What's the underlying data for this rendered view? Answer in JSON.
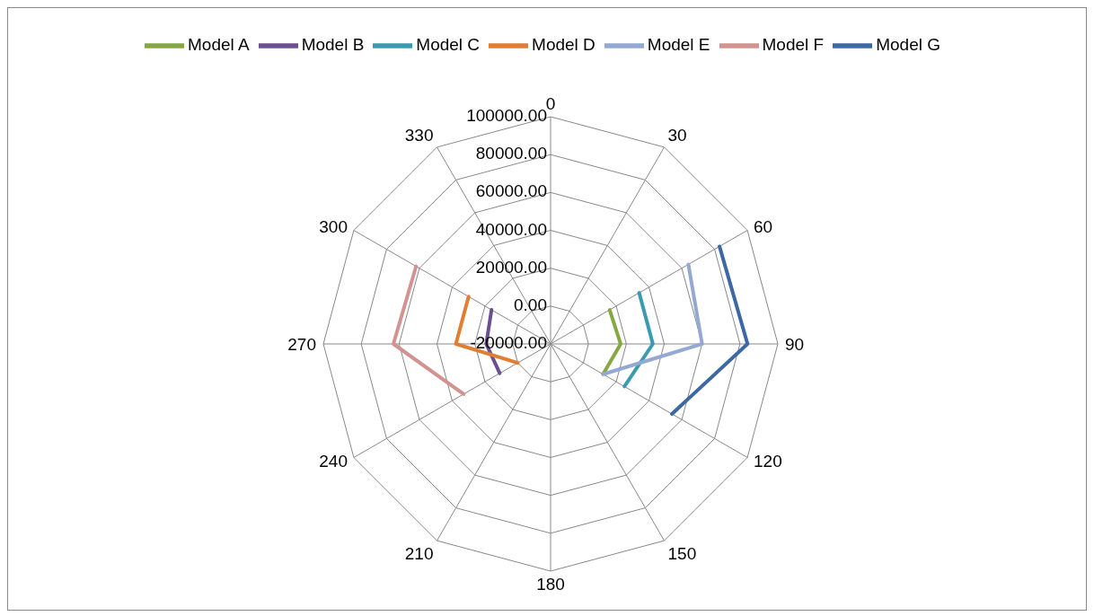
{
  "chart_data": {
    "type": "radar",
    "categories": [
      "0",
      "30",
      "60",
      "90",
      "120",
      "150",
      "180",
      "210",
      "240",
      "270",
      "300",
      "330"
    ],
    "series": [
      {
        "name": "Model A",
        "color": "#86a844",
        "values": [
          null,
          null,
          16000,
          17000,
          12000,
          null,
          null,
          null,
          null,
          null,
          null,
          null
        ]
      },
      {
        "name": "Model B",
        "color": "#6b4f8f",
        "values": [
          null,
          null,
          null,
          null,
          null,
          null,
          null,
          null,
          11000,
          14000,
          16000,
          null
        ]
      },
      {
        "name": "Model C",
        "color": "#3a9bb0",
        "values": [
          null,
          null,
          34000,
          34000,
          25000,
          null,
          null,
          null,
          null,
          null,
          null,
          null
        ]
      },
      {
        "name": "Model D",
        "color": "#e07f34",
        "values": [
          null,
          null,
          null,
          null,
          null,
          null,
          null,
          null,
          0,
          30000,
          30000,
          null
        ]
      },
      {
        "name": "Model E",
        "color": "#93a9d1",
        "values": [
          null,
          null,
          64000,
          60000,
          12000,
          null,
          null,
          null,
          null,
          null,
          null,
          null
        ]
      },
      {
        "name": "Model F",
        "color": "#d39390",
        "values": [
          null,
          null,
          null,
          null,
          null,
          null,
          null,
          null,
          33000,
          63000,
          62000,
          null
        ]
      },
      {
        "name": "Model G",
        "color": "#3c68a4",
        "values": [
          null,
          null,
          83000,
          84000,
          54000,
          null,
          null,
          null,
          null,
          null,
          null,
          null
        ]
      }
    ],
    "ylim": [
      -20000,
      100000
    ],
    "yticks": [
      {
        "value": -20000,
        "label": "-20000.00"
      },
      {
        "value": 0,
        "label": "0.00"
      },
      {
        "value": 20000,
        "label": "20000.00"
      },
      {
        "value": 40000,
        "label": "40000.00"
      },
      {
        "value": 60000,
        "label": "60000.00"
      },
      {
        "value": 80000,
        "label": "80000.00"
      },
      {
        "value": 100000,
        "label": "100000.00"
      }
    ],
    "grid": true,
    "legend": "top"
  }
}
